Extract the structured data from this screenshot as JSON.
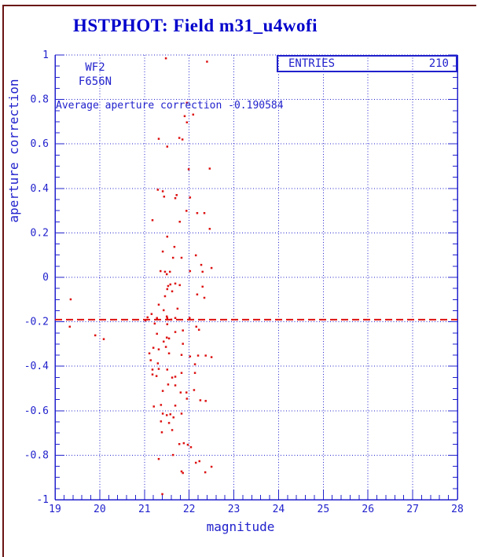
{
  "title": "HSTPHOT: Field m31_u4wofi",
  "annotations": {
    "camera": "WF2",
    "filter": "F656N",
    "average_text": "Average aperture correction -0.190584"
  },
  "stats_box": {
    "label": "ENTRIES",
    "value": "210"
  },
  "colors": {
    "plot_blue": "#2121cd",
    "title_blue": "#0000cc",
    "point_red": "#dd1111",
    "frame_dark_red": "#6b1414",
    "background": "#ffffff"
  },
  "chart_data": {
    "type": "scatter",
    "title": "HSTPHOT: Field m31_u4wofi",
    "xlabel": "magnitude",
    "ylabel": "aperture correction",
    "xlim": [
      19,
      28
    ],
    "ylim": [
      -1,
      1
    ],
    "x_major_ticks": [
      19,
      20,
      21,
      22,
      23,
      24,
      25,
      26,
      27,
      28
    ],
    "y_major_ticks": [
      1,
      0.8,
      0.6,
      0.4,
      0.2,
      0,
      -0.2,
      -0.4,
      -0.6,
      -0.8,
      -1
    ],
    "x_minor_step": 0.2,
    "y_minor_step": 0.05,
    "grid": true,
    "legend": "none",
    "entries": 210,
    "mean_line": -0.190584,
    "marker": "small-red-square",
    "points": [
      [
        21.48,
        0.985
      ],
      [
        22.4,
        0.97
      ],
      [
        21.95,
        0.785
      ],
      [
        21.9,
        0.725
      ],
      [
        22.09,
        0.732
      ],
      [
        21.95,
        0.697
      ],
      [
        21.32,
        0.623
      ],
      [
        21.78,
        0.627
      ],
      [
        21.85,
        0.62
      ],
      [
        21.51,
        0.588
      ],
      [
        21.99,
        0.486
      ],
      [
        22.46,
        0.489
      ],
      [
        21.3,
        0.394
      ],
      [
        21.41,
        0.387
      ],
      [
        21.72,
        0.37
      ],
      [
        22.02,
        0.359
      ],
      [
        21.44,
        0.363
      ],
      [
        21.69,
        0.356
      ],
      [
        21.94,
        0.299
      ],
      [
        22.18,
        0.289
      ],
      [
        22.34,
        0.289
      ],
      [
        21.18,
        0.257
      ],
      [
        21.79,
        0.25
      ],
      [
        22.46,
        0.218
      ],
      [
        21.51,
        0.183
      ],
      [
        21.67,
        0.137
      ],
      [
        21.41,
        0.116
      ],
      [
        21.64,
        0.088
      ],
      [
        21.83,
        0.088
      ],
      [
        22.15,
        0.099
      ],
      [
        22.27,
        0.056
      ],
      [
        22.5,
        0.042
      ],
      [
        21.36,
        0.028
      ],
      [
        21.46,
        0.025
      ],
      [
        21.5,
        0.014
      ],
      [
        21.57,
        0.025
      ],
      [
        22.02,
        0.028
      ],
      [
        22.3,
        0.025
      ],
      [
        21.53,
        -0.039
      ],
      [
        21.58,
        -0.032
      ],
      [
        21.69,
        -0.028
      ],
      [
        21.79,
        -0.035
      ],
      [
        21.51,
        -0.053
      ],
      [
        21.62,
        -0.063
      ],
      [
        21.46,
        -0.085
      ],
      [
        22.3,
        -0.042
      ],
      [
        22.18,
        -0.077
      ],
      [
        22.34,
        -0.092
      ],
      [
        19.35,
        -0.099
      ],
      [
        19.33,
        -0.222
      ],
      [
        19.9,
        -0.261
      ],
      [
        20.09,
        -0.278
      ],
      [
        21.02,
        -0.194
      ],
      [
        21.32,
        -0.123
      ],
      [
        21.43,
        -0.148
      ],
      [
        21.74,
        -0.141
      ],
      [
        21.16,
        -0.165
      ],
      [
        21.07,
        -0.18
      ],
      [
        21.28,
        -0.183
      ],
      [
        21.5,
        -0.176
      ],
      [
        21.51,
        -0.183
      ],
      [
        21.6,
        -0.19
      ],
      [
        21.69,
        -0.183
      ],
      [
        22.01,
        -0.183
      ],
      [
        21.23,
        -0.208
      ],
      [
        21.51,
        -0.211
      ],
      [
        22.16,
        -0.222
      ],
      [
        22.22,
        -0.236
      ],
      [
        21.28,
        -0.254
      ],
      [
        21.69,
        -0.246
      ],
      [
        21.86,
        -0.239
      ],
      [
        21.5,
        -0.271
      ],
      [
        21.55,
        -0.275
      ],
      [
        21.43,
        -0.289
      ],
      [
        21.86,
        -0.299
      ],
      [
        21.2,
        -0.317
      ],
      [
        21.32,
        -0.324
      ],
      [
        21.48,
        -0.313
      ],
      [
        21.11,
        -0.342
      ],
      [
        21.55,
        -0.342
      ],
      [
        21.83,
        -0.349
      ],
      [
        22.02,
        -0.356
      ],
      [
        22.2,
        -0.352
      ],
      [
        22.37,
        -0.352
      ],
      [
        21.14,
        -0.373
      ],
      [
        21.3,
        -0.387
      ],
      [
        22.13,
        -0.391
      ],
      [
        22.5,
        -0.359
      ],
      [
        21.18,
        -0.415
      ],
      [
        21.32,
        -0.412
      ],
      [
        21.51,
        -0.415
      ],
      [
        21.18,
        -0.437
      ],
      [
        21.27,
        -0.444
      ],
      [
        21.83,
        -0.43
      ],
      [
        22.13,
        -0.43
      ],
      [
        21.62,
        -0.451
      ],
      [
        21.69,
        -0.447
      ],
      [
        21.53,
        -0.482
      ],
      [
        21.69,
        -0.486
      ],
      [
        21.41,
        -0.511
      ],
      [
        21.81,
        -0.518
      ],
      [
        21.94,
        -0.518
      ],
      [
        22.11,
        -0.507
      ],
      [
        21.95,
        -0.546
      ],
      [
        22.25,
        -0.553
      ],
      [
        22.37,
        -0.556
      ],
      [
        21.21,
        -0.581
      ],
      [
        21.37,
        -0.574
      ],
      [
        21.69,
        -0.577
      ],
      [
        21.41,
        -0.613
      ],
      [
        21.5,
        -0.62
      ],
      [
        21.58,
        -0.616
      ],
      [
        21.83,
        -0.613
      ],
      [
        21.65,
        -0.63
      ],
      [
        21.37,
        -0.648
      ],
      [
        21.55,
        -0.655
      ],
      [
        21.62,
        -0.687
      ],
      [
        21.39,
        -0.697
      ],
      [
        21.78,
        -0.75
      ],
      [
        21.88,
        -0.746
      ],
      [
        21.97,
        -0.753
      ],
      [
        22.04,
        -0.764
      ],
      [
        21.64,
        -0.799
      ],
      [
        21.32,
        -0.817
      ],
      [
        22.15,
        -0.834
      ],
      [
        22.23,
        -0.827
      ],
      [
        22.5,
        -0.852
      ],
      [
        21.83,
        -0.873
      ],
      [
        21.86,
        -0.88
      ],
      [
        22.36,
        -0.877
      ],
      [
        21.4,
        -0.975
      ]
    ]
  }
}
